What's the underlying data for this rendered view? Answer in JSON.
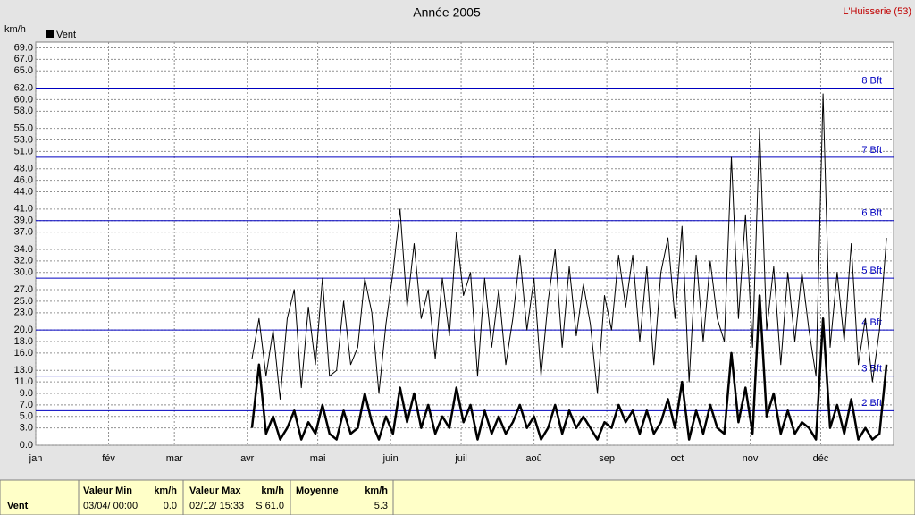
{
  "chart_data": {
    "type": "line",
    "title": "Année 2005",
    "station": "L'Huisserie (53)",
    "y_label": "km/h",
    "xlim": [
      0,
      365
    ],
    "xticks": [
      {
        "value": 0,
        "label": "jan"
      },
      {
        "value": 31,
        "label": "fév"
      },
      {
        "value": 59,
        "label": "mar"
      },
      {
        "value": 90,
        "label": "avr"
      },
      {
        "value": 120,
        "label": "mai"
      },
      {
        "value": 151,
        "label": "juin"
      },
      {
        "value": 181,
        "label": "juil"
      },
      {
        "value": 212,
        "label": "aoû"
      },
      {
        "value": 243,
        "label": "sep"
      },
      {
        "value": 273,
        "label": "oct"
      },
      {
        "value": 304,
        "label": "nov"
      },
      {
        "value": 334,
        "label": "déc"
      }
    ],
    "ylim": [
      0,
      70
    ],
    "yticks": [
      {
        "value": 0,
        "label": "0.0"
      },
      {
        "value": 3,
        "label": "3.0"
      },
      {
        "value": 5,
        "label": "5.0"
      },
      {
        "value": 7,
        "label": "7.0"
      },
      {
        "value": 9,
        "label": "9.0"
      },
      {
        "value": 11,
        "label": "11.0"
      },
      {
        "value": 13,
        "label": "13.0"
      },
      {
        "value": 16,
        "label": "16.0"
      },
      {
        "value": 18,
        "label": "18.0"
      },
      {
        "value": 20,
        "label": "20.0"
      },
      {
        "value": 23,
        "label": "23.0"
      },
      {
        "value": 25,
        "label": "25.0"
      },
      {
        "value": 27,
        "label": "27.0"
      },
      {
        "value": 30,
        "label": "30.0"
      },
      {
        "value": 32,
        "label": "32.0"
      },
      {
        "value": 34,
        "label": "34.0"
      },
      {
        "value": 37,
        "label": "37.0"
      },
      {
        "value": 39,
        "label": "39.0"
      },
      {
        "value": 41,
        "label": "41.0"
      },
      {
        "value": 44,
        "label": "44.0"
      },
      {
        "value": 46,
        "label": "46.0"
      },
      {
        "value": 48,
        "label": "48.0"
      },
      {
        "value": 51,
        "label": "51.0"
      },
      {
        "value": 53,
        "label": "53.0"
      },
      {
        "value": 55,
        "label": "55.0"
      },
      {
        "value": 58,
        "label": "58.0"
      },
      {
        "value": 60,
        "label": "60.0"
      },
      {
        "value": 62,
        "label": "62.0"
      },
      {
        "value": 65,
        "label": "65.0"
      },
      {
        "value": 67,
        "label": "67.0"
      },
      {
        "value": 69,
        "label": "69.0"
      }
    ],
    "grid": true,
    "reference_lines": [
      {
        "value": 6,
        "label": "2 Bft"
      },
      {
        "value": 12,
        "label": "3 Bft"
      },
      {
        "value": 20,
        "label": "4 Bft"
      },
      {
        "value": 29,
        "label": "5 Bft"
      },
      {
        "value": 39,
        "label": "6 Bft"
      },
      {
        "value": 50,
        "label": "7 Bft"
      },
      {
        "value": 62,
        "label": "8 Bft"
      }
    ],
    "reference_color": "#0000c0",
    "x": [
      92,
      95,
      98,
      101,
      104,
      107,
      110,
      113,
      116,
      119,
      122,
      125,
      128,
      131,
      134,
      137,
      140,
      143,
      146,
      149,
      152,
      155,
      158,
      161,
      164,
      167,
      170,
      173,
      176,
      179,
      182,
      185,
      188,
      191,
      194,
      197,
      200,
      203,
      206,
      209,
      212,
      215,
      218,
      221,
      224,
      227,
      230,
      233,
      236,
      239,
      242,
      245,
      248,
      251,
      254,
      257,
      260,
      263,
      266,
      269,
      272,
      275,
      278,
      281,
      284,
      287,
      290,
      293,
      296,
      299,
      302,
      305,
      308,
      311,
      314,
      317,
      320,
      323,
      326,
      329,
      332,
      335,
      338,
      341,
      344,
      347,
      350,
      353,
      356,
      359,
      362
    ],
    "series": [
      {
        "color": "#000000",
        "width": 1,
        "values": [
          15,
          22,
          12,
          20,
          8,
          22,
          27,
          10,
          24,
          14,
          29,
          12,
          13,
          25,
          14,
          17,
          29,
          23,
          9,
          21,
          30,
          41,
          24,
          35,
          22,
          27,
          15,
          29,
          19,
          37,
          26,
          30,
          12,
          29,
          17,
          27,
          14,
          22,
          33,
          20,
          29,
          12,
          25,
          34,
          17,
          31,
          19,
          28,
          21,
          9,
          26,
          20,
          33,
          24,
          33,
          18,
          31,
          14,
          30,
          36,
          22,
          38,
          11,
          33,
          18,
          32,
          22,
          18,
          50,
          22,
          40,
          17,
          55,
          20,
          31,
          14,
          30,
          18,
          30,
          20,
          12,
          61,
          17,
          30,
          18,
          35,
          14,
          22,
          11,
          20,
          36
        ]
      },
      {
        "name": "Vent",
        "color": "#000000",
        "width": 2.5,
        "values": [
          3,
          14,
          2,
          5,
          1,
          3,
          6,
          1,
          4,
          2,
          7,
          2,
          1,
          6,
          2,
          3,
          9,
          4,
          1,
          5,
          2,
          10,
          4,
          9,
          3,
          7,
          2,
          5,
          3,
          10,
          4,
          7,
          1,
          6,
          2,
          5,
          2,
          4,
          7,
          3,
          5,
          1,
          3,
          7,
          2,
          6,
          3,
          5,
          3,
          1,
          4,
          3,
          7,
          4,
          6,
          2,
          6,
          2,
          4,
          8,
          3,
          11,
          1,
          6,
          2,
          7,
          3,
          2,
          16,
          4,
          10,
          2,
          26,
          5,
          9,
          2,
          6,
          2,
          4,
          3,
          1,
          22,
          3,
          7,
          2,
          8,
          1,
          3,
          1,
          2,
          14
        ]
      }
    ]
  },
  "status_bar": {
    "row_label": "Vent",
    "min": {
      "title": "Valeur Min",
      "unit": "km/h",
      "time": "03/04/ 00:00",
      "value": "0.0"
    },
    "max": {
      "title": "Valeur Max",
      "unit": "km/h",
      "time": "02/12/ 15:33",
      "value": "S 61.0"
    },
    "mean": {
      "title": "Moyenne",
      "unit": "km/h",
      "value": "5.3"
    }
  }
}
